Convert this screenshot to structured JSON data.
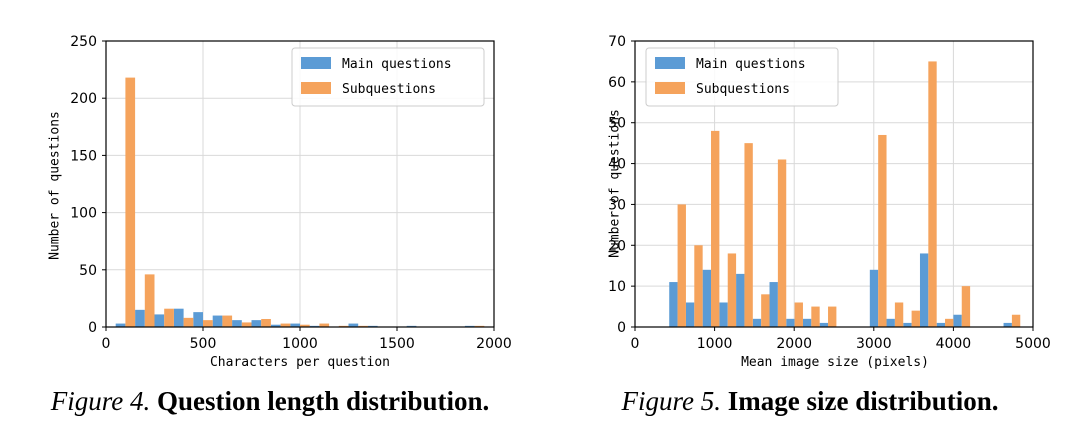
{
  "chart_data": [
    {
      "type": "bar",
      "xlabel": "Characters per question",
      "ylabel": "Number of questions",
      "xlim": [
        0,
        2000
      ],
      "ylim": [
        0,
        250
      ],
      "xticks": [
        0,
        500,
        1000,
        1500,
        2000
      ],
      "yticks": [
        0,
        50,
        100,
        150,
        200,
        250
      ],
      "grid": true,
      "legend_position": "top-right",
      "bin_width": 100,
      "bin_starts": [
        50,
        150,
        250,
        350,
        450,
        550,
        650,
        750,
        850,
        950,
        1050,
        1150,
        1250,
        1350,
        1450,
        1550,
        1650,
        1750,
        1850
      ],
      "series": [
        {
          "name": "Main questions",
          "color": "#5b9bd5",
          "values": [
            3,
            15,
            11,
            16,
            13,
            10,
            6,
            6,
            2,
            3,
            1,
            0,
            3,
            1,
            0,
            1,
            0,
            0,
            1
          ]
        },
        {
          "name": "Subquestions",
          "color": "#f5a35c",
          "values": [
            218,
            46,
            16,
            8,
            6,
            10,
            4,
            7,
            3,
            2,
            3,
            1,
            1,
            0,
            0,
            0,
            0,
            0,
            1
          ]
        }
      ]
    },
    {
      "type": "bar",
      "xlabel": "Mean image size (pixels)",
      "ylabel": "Number of questions",
      "xlim": [
        0,
        5000
      ],
      "ylim": [
        0,
        70
      ],
      "xticks": [
        0,
        1000,
        2000,
        3000,
        4000,
        5000
      ],
      "yticks": [
        0,
        10,
        20,
        30,
        40,
        50,
        60,
        70
      ],
      "grid": true,
      "legend_position": "top-left",
      "bin_width": 210,
      "bin_starts": [
        430,
        640,
        850,
        1060,
        1270,
        1480,
        1690,
        1900,
        2110,
        2320,
        2530,
        2740,
        2950,
        3160,
        3370,
        3580,
        3790,
        4000,
        4210,
        4420,
        4630
      ],
      "series": [
        {
          "name": "Main questions",
          "color": "#5b9bd5",
          "values": [
            11,
            6,
            14,
            6,
            13,
            2,
            11,
            2,
            2,
            1,
            0,
            0,
            14,
            2,
            1,
            18,
            1,
            3,
            0,
            0,
            1
          ]
        },
        {
          "name": "Subquestions",
          "color": "#f5a35c",
          "values": [
            30,
            20,
            48,
            18,
            45,
            8,
            41,
            6,
            5,
            5,
            0,
            0,
            47,
            6,
            4,
            65,
            2,
            10,
            0,
            0,
            3
          ]
        }
      ]
    }
  ],
  "captions": [
    {
      "label": "Figure 4.",
      "title": "Question length distribution."
    },
    {
      "label": "Figure 5.",
      "title": "Image size distribution."
    }
  ]
}
